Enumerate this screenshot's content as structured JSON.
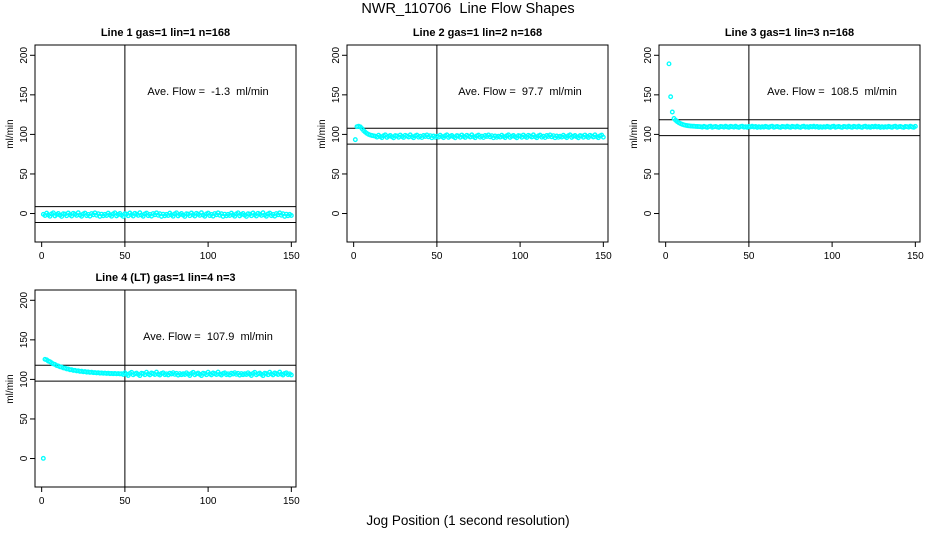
{
  "figure": {
    "title": "NWR_110706  Line Flow Shapes",
    "xlabel": "Jog Position (1 second resolution)"
  },
  "chart_data": {
    "type": "scatter",
    "layout": "2x3 grid, 4 panels used",
    "point_color": "#00FFFF",
    "point_style": "open-circle",
    "line_color": "#000000",
    "background": "#ffffff",
    "xlim": [
      -4,
      152.8
    ],
    "ylim": [
      -36,
      213
    ],
    "x_ticks": [
      0,
      50,
      100,
      150
    ],
    "y_ticks": [
      0,
      50,
      100,
      150,
      200
    ],
    "ylabel": "ml/min",
    "vline_x": 50,
    "panels": [
      {
        "title": "Line 1 gas=1 lin=1 n=168",
        "annotation": "Ave. Flow =  -1.3  ml/min",
        "ave_flow": -1.3,
        "hlines": [
          8.7,
          -11.3
        ],
        "x_start": 1,
        "y": [
          -1.0,
          -2.5,
          0.5,
          -1.7,
          -3.4,
          -0.4,
          0.9,
          -3.0,
          -1.2,
          0.1,
          -2.1,
          -3.7,
          -0.2,
          -0.7,
          -2.8,
          0.7,
          -1.5,
          -3.2,
          0.3,
          -0.9,
          -2.4,
          1.0,
          -1.9,
          -3.5,
          -0.5,
          0.6,
          -2.7,
          -1.1,
          -3.3,
          0.0,
          -1.6,
          0.8,
          -2.2,
          -0.3,
          -3.6,
          -0.8,
          -2.9,
          -1.0,
          -2.5,
          0.5,
          -1.7,
          -3.4,
          -0.4,
          0.9,
          -3.0,
          -1.2,
          0.1,
          -2.1,
          -3.7,
          -0.2,
          -0.7,
          -2.8,
          0.7,
          -1.5,
          -3.2,
          0.3,
          -0.9,
          -2.4,
          1.0,
          -1.9,
          -3.5,
          -0.5,
          0.6,
          -2.7,
          -1.1,
          -3.3,
          0.0,
          -1.6,
          0.8,
          -2.2,
          -0.3,
          -3.6,
          -0.8,
          -2.9,
          -1.0,
          -2.5,
          0.5,
          -1.7,
          -3.4,
          -0.4,
          0.9,
          -3.0,
          -1.2,
          0.1,
          -2.1,
          -3.7,
          -0.2,
          -0.7,
          -2.8,
          0.7,
          -1.5,
          -3.2,
          0.3,
          -0.9,
          -2.4,
          1.0,
          -1.9,
          -3.5,
          -0.5,
          0.6,
          -2.7,
          -1.1,
          -3.3,
          0.0,
          -1.6,
          0.8,
          -2.2,
          -0.3,
          -3.6,
          -0.8,
          -2.9,
          -1.0,
          -2.5,
          0.5,
          -1.7,
          -3.4,
          -0.4,
          0.9,
          -3.0,
          -1.2,
          0.1,
          -2.1,
          -3.7,
          -0.2,
          -0.7,
          -2.8,
          0.7,
          -1.5,
          -3.2,
          0.3,
          -0.9,
          -2.4,
          1.0,
          -1.9,
          -3.5,
          -0.5,
          0.6,
          -2.7,
          -1.1,
          -3.3,
          0.0,
          -1.6,
          0.8,
          -2.2,
          -0.3,
          -3.6,
          -0.8,
          -2.9,
          -1.0,
          -2.5
        ]
      },
      {
        "title": "Line 2 gas=1 lin=2 n=168",
        "annotation": "Ave. Flow =  97.7  ml/min",
        "ave_flow": 97.7,
        "hlines": [
          107.7,
          87.7
        ],
        "x_start": 1,
        "y": [
          93.4,
          109.8,
          110.4,
          109.5,
          107.3,
          104.8,
          102.8,
          101.2,
          100.0,
          99.2,
          98.6,
          98.2,
          97.8,
          96.6,
          99.0,
          97.3,
          95.9,
          98.3,
          99.4,
          96.2,
          97.7,
          98.7,
          97.0,
          95.7,
          98.5,
          98.1,
          96.4,
          99.2,
          97.4,
          96.1,
          98.9,
          97.9,
          96.7,
          99.4,
          97.1,
          95.8,
          98.2,
          99.1,
          96.5,
          97.8,
          96.0,
          98.6,
          97.4,
          99.3,
          96.9,
          98.4,
          95.8,
          98.0,
          96.3,
          97.8,
          96.6,
          99.0,
          97.3,
          95.9,
          98.3,
          99.4,
          96.2,
          97.7,
          98.7,
          97.0,
          95.7,
          98.5,
          98.1,
          96.4,
          99.2,
          97.4,
          96.1,
          98.9,
          97.9,
          96.7,
          99.4,
          97.1,
          95.8,
          98.2,
          99.1,
          96.5,
          97.8,
          96.0,
          98.6,
          97.4,
          99.3,
          96.9,
          98.4,
          95.8,
          98.0,
          96.3,
          97.8,
          96.6,
          99.0,
          97.3,
          95.9,
          98.3,
          99.4,
          96.2,
          97.7,
          98.7,
          97.0,
          95.7,
          98.5,
          98.1,
          96.4,
          99.2,
          97.4,
          96.1,
          98.9,
          97.9,
          96.7,
          99.4,
          97.1,
          95.8,
          98.2,
          99.1,
          96.5,
          97.8,
          96.0,
          98.6,
          97.4,
          99.3,
          96.9,
          98.4,
          95.8,
          98.0,
          96.3,
          97.8,
          96.6,
          99.0,
          97.3,
          95.9,
          98.3,
          99.4,
          96.2,
          97.7,
          98.7,
          97.0,
          95.7,
          98.5,
          98.1,
          96.4,
          99.2,
          97.4,
          96.1,
          98.9,
          97.9,
          96.7,
          99.4,
          97.1,
          95.8,
          98.2,
          99.1,
          96.5
        ]
      },
      {
        "title": "Line 3 gas=1 lin=3 n=168",
        "annotation": "Ave. Flow =  108.5  ml/min",
        "ave_flow": 108.5,
        "hlines": [
          118.5,
          98.5
        ],
        "x_start": 2,
        "y": [
          189.2,
          147.6,
          128.3,
          120.1,
          117.9,
          116.1,
          114.7,
          113.6,
          112.7,
          112.0,
          111.5,
          111.1,
          110.8,
          110.6,
          110.4,
          110.3,
          110.1,
          110.0,
          109.9,
          109.7,
          109.2,
          110.2,
          109.5,
          108.9,
          109.9,
          110.4,
          109.0,
          109.6,
          110.1,
          109.3,
          108.8,
          110.0,
          109.8,
          109.1,
          110.3,
          109.5,
          108.9,
          110.2,
          109.7,
          109.2,
          110.4,
          109.4,
          108.8,
          109.9,
          110.3,
          109.1,
          109.7,
          108.9,
          110.1,
          109.5,
          110.3,
          109.3,
          110.0,
          108.8,
          109.8,
          109.0,
          109.7,
          109.2,
          110.2,
          109.5,
          108.9,
          109.9,
          110.4,
          109.0,
          109.6,
          110.1,
          109.3,
          108.8,
          110.0,
          109.8,
          109.1,
          110.3,
          109.5,
          108.9,
          110.2,
          109.7,
          109.2,
          110.4,
          109.4,
          108.8,
          109.9,
          110.3,
          109.1,
          109.7,
          108.9,
          110.1,
          109.5,
          110.3,
          109.3,
          110.0,
          108.8,
          109.8,
          109.0,
          109.7,
          109.2,
          110.2,
          109.5,
          108.9,
          109.9,
          110.4,
          109.0,
          109.6,
          110.1,
          109.3,
          108.8,
          110.0,
          109.8,
          109.1,
          110.3,
          109.5,
          108.9,
          110.2,
          109.7,
          109.2,
          110.4,
          109.4,
          108.8,
          109.9,
          110.3,
          109.1,
          109.7,
          108.9,
          110.1,
          109.5,
          110.3,
          109.3,
          110.0,
          108.8,
          109.8,
          109.0,
          109.7,
          109.2,
          110.2,
          109.5,
          108.9,
          109.9,
          110.4,
          109.0,
          109.6,
          110.1,
          109.3,
          108.8,
          110.0,
          109.8,
          109.1,
          110.3,
          109.5,
          108.9,
          110.2
        ]
      },
      {
        "title": "Line 4 (LT) gas=1 lin=4 n=3",
        "annotation": "Ave. Flow =  107.9  ml/min",
        "ave_flow": 107.9,
        "hlines": [
          117.9,
          97.9
        ],
        "x_start": 1,
        "y": [
          0.2,
          125.4,
          124.8,
          123.1,
          122.3,
          120.9,
          119.6,
          118.9,
          117.5,
          117.0,
          115.9,
          115.6,
          114.5,
          114.3,
          113.3,
          113.2,
          112.2,
          112.3,
          111.4,
          111.5,
          110.7,
          110.9,
          110.1,
          110.3,
          109.6,
          109.9,
          109.2,
          109.4,
          108.8,
          109.1,
          108.5,
          108.7,
          108.2,
          108.5,
          107.9,
          108.2,
          107.7,
          108.0,
          107.5,
          107.8,
          107.3,
          107.6,
          107.2,
          107.5,
          107.1,
          107.4,
          107.0,
          107.2,
          106.2,
          108.3,
          106.7,
          104.9,
          107.6,
          109.0,
          105.8,
          107.1,
          108.0,
          106.4,
          104.8,
          107.8,
          107.4,
          105.9,
          109.1,
          106.9,
          105.7,
          108.1,
          107.3,
          106.2,
          109.2,
          106.6,
          105.5,
          107.6,
          108.3,
          106.0,
          107.1,
          105.6,
          107.9,
          106.8,
          108.5,
          106.4,
          107.7,
          105.4,
          107.4,
          105.9,
          107.2,
          106.2,
          108.3,
          106.7,
          104.9,
          107.6,
          109.0,
          105.8,
          107.1,
          108.0,
          106.4,
          104.8,
          107.8,
          107.4,
          105.9,
          109.1,
          106.9,
          105.7,
          108.1,
          107.3,
          106.2,
          109.2,
          106.6,
          105.5,
          107.6,
          108.3,
          106.0,
          107.1,
          105.6,
          107.9,
          106.8,
          108.5,
          106.4,
          107.7,
          105.4,
          107.4,
          105.9,
          107.2,
          106.2,
          108.3,
          106.7,
          104.9,
          107.6,
          109.0,
          105.8,
          107.1,
          108.0,
          106.4,
          104.8,
          107.8,
          107.4,
          105.9,
          109.1,
          106.9,
          105.7,
          108.1,
          107.3,
          106.2,
          109.2,
          106.6,
          105.5,
          107.6,
          108.3,
          106.0,
          107.1,
          105.6
        ]
      }
    ]
  }
}
